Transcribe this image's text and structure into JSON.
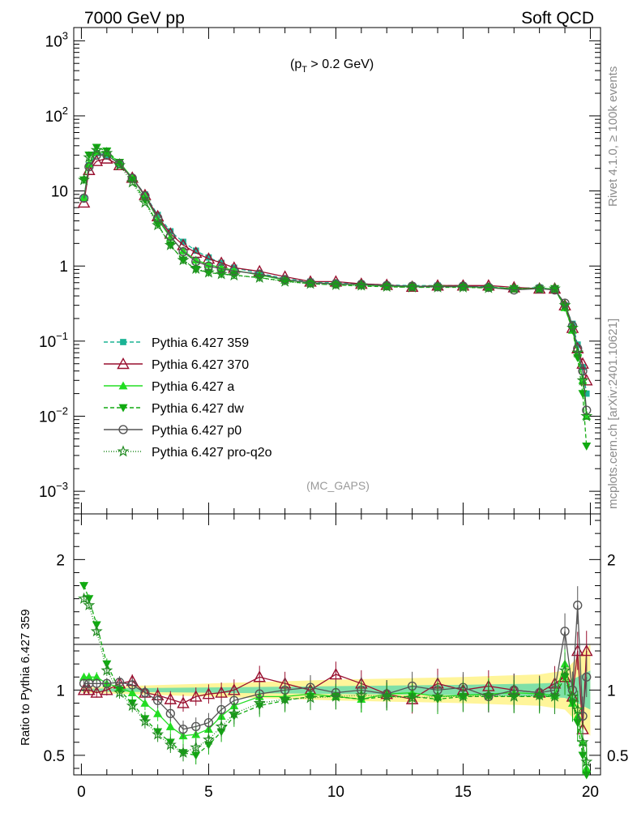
{
  "header": {
    "left": "7000 GeV pp",
    "right": "Soft QCD"
  },
  "side_text": {
    "top": "Rivet 4.1.0, ≥ 100k events",
    "bottom": "mcplots.cern.ch [arXiv:2401.10621]"
  },
  "chart_data": {
    "type": "line",
    "title": "7000 GeV pp Soft QCD",
    "main_panel": {
      "annotation_prefix": "(p",
      "annotation_sub": "T",
      "annotation_suffix": " > 0.2 GeV)",
      "analysis_tag": "(MC_GAPS)",
      "yscale": "log",
      "ylim": [
        0.0005,
        1500
      ],
      "y_ticks": [
        {
          "base": "10",
          "exp": "3",
          "value": 1000
        },
        {
          "base": "10",
          "exp": "2",
          "value": 100
        },
        {
          "base": "10",
          "exp": "",
          "value": 10
        },
        {
          "base": "1",
          "exp": "",
          "value": 1
        },
        {
          "base": "10",
          "exp": "−1",
          "value": 0.1
        },
        {
          "base": "10",
          "exp": "−2",
          "value": 0.01
        },
        {
          "base": "10",
          "exp": "−3",
          "value": 0.001
        }
      ]
    },
    "ratio_panel": {
      "ylabel": "Ratio to Pythia 6.427 359",
      "ylim": [
        0.35,
        2.35
      ],
      "y_ticks": [
        {
          "label": "0.5",
          "value": 0.5
        },
        {
          "label": "1",
          "value": 1
        },
        {
          "label": "2",
          "value": 2
        }
      ]
    },
    "xlim": [
      -0.3,
      20.4
    ],
    "x_ticks": [
      {
        "label": "0",
        "value": 0
      },
      {
        "label": "5",
        "value": 5
      },
      {
        "label": "10",
        "value": 10
      },
      {
        "label": "15",
        "value": 15
      },
      {
        "label": "20",
        "value": 20
      }
    ],
    "x": [
      0.1,
      0.3,
      0.6,
      1.0,
      1.5,
      2.0,
      2.5,
      3.0,
      3.5,
      4.0,
      4.5,
      5.0,
      5.5,
      6.0,
      7.0,
      8.0,
      9.0,
      10.0,
      11.0,
      12.0,
      13.0,
      14.0,
      15.0,
      16.0,
      17.0,
      18.0,
      18.6,
      19.0,
      19.3,
      19.5,
      19.7,
      19.85
    ],
    "series": [
      {
        "name": "Pythia 6.427 359",
        "color": "#1ab394",
        "dash": "5,3",
        "marker": "square",
        "values": [
          8.0,
          22,
          32,
          30,
          23,
          15,
          9.0,
          4.8,
          2.9,
          2.1,
          1.6,
          1.3,
          1.1,
          0.95,
          0.8,
          0.68,
          0.62,
          0.6,
          0.58,
          0.56,
          0.55,
          0.55,
          0.55,
          0.53,
          0.5,
          0.52,
          0.48,
          0.3,
          0.17,
          0.09,
          0.045,
          0.02
        ],
        "ratio": [
          1.05,
          1.05,
          1.03,
          1.02,
          1.01,
          1.0,
          1.0,
          1.0,
          1.0,
          1.0,
          1.0,
          1.0,
          1.0,
          1.0,
          1.0,
          1.0,
          1.0,
          1.0,
          1.0,
          1.0,
          1.0,
          1.0,
          1.0,
          1.0,
          1.0,
          1.0,
          1.0,
          1.0,
          1.0,
          1.0,
          1.0,
          1.0
        ]
      },
      {
        "name": "Pythia 6.427 370",
        "color": "#990f2f",
        "dash": "",
        "marker": "triangle-open",
        "values": [
          7.0,
          19,
          25,
          27,
          22,
          15,
          8.8,
          4.6,
          2.7,
          1.9,
          1.5,
          1.25,
          1.1,
          0.95,
          0.85,
          0.72,
          0.62,
          0.62,
          0.58,
          0.56,
          0.53,
          0.55,
          0.55,
          0.55,
          0.52,
          0.5,
          0.5,
          0.3,
          0.15,
          0.08,
          0.05,
          0.03
        ],
        "ratio": [
          1.0,
          1.0,
          0.98,
          1.0,
          1.05,
          1.07,
          0.98,
          0.96,
          0.93,
          0.9,
          0.95,
          0.97,
          0.98,
          1.0,
          1.1,
          1.05,
          1.0,
          1.12,
          1.05,
          0.97,
          0.93,
          1.05,
          1.0,
          1.03,
          1.0,
          0.98,
          1.05,
          1.1,
          0.95,
          1.3,
          0.7,
          1.3
        ]
      },
      {
        "name": "Pythia 6.427 a",
        "color": "#22dd22",
        "dash": "",
        "marker": "triangle",
        "values": [
          8.2,
          23,
          33,
          32,
          24,
          15,
          8.5,
          4.2,
          2.4,
          1.6,
          1.2,
          1.05,
          0.95,
          0.88,
          0.76,
          0.65,
          0.6,
          0.58,
          0.56,
          0.54,
          0.53,
          0.54,
          0.53,
          0.52,
          0.5,
          0.5,
          0.5,
          0.28,
          0.14,
          0.07,
          0.03,
          0.01
        ],
        "ratio": [
          1.1,
          1.1,
          1.1,
          1.05,
          1.02,
          0.98,
          0.9,
          0.82,
          0.72,
          0.65,
          0.66,
          0.7,
          0.8,
          0.88,
          0.95,
          0.95,
          0.97,
          0.95,
          0.93,
          0.97,
          0.98,
          0.95,
          0.96,
          0.97,
          0.98,
          0.97,
          0.96,
          1.2,
          0.9,
          0.8,
          0.6,
          0.4
        ]
      },
      {
        "name": "Pythia 6.427 dw",
        "color": "#11aa11",
        "dash": "5,3",
        "marker": "triangle-down",
        "values": [
          14,
          30,
          38,
          34,
          24,
          14,
          7.5,
          3.6,
          1.9,
          1.2,
          0.9,
          0.82,
          0.78,
          0.76,
          0.7,
          0.63,
          0.58,
          0.56,
          0.54,
          0.53,
          0.52,
          0.52,
          0.52,
          0.51,
          0.5,
          0.5,
          0.5,
          0.28,
          0.14,
          0.06,
          0.02,
          0.004
        ],
        "ratio": [
          1.8,
          1.7,
          1.5,
          1.2,
          1.0,
          0.9,
          0.78,
          0.68,
          0.6,
          0.52,
          0.5,
          0.58,
          0.68,
          0.8,
          0.88,
          0.92,
          0.95,
          0.95,
          0.93,
          0.95,
          0.95,
          0.93,
          0.95,
          0.95,
          0.95,
          0.95,
          0.95,
          1.1,
          0.9,
          0.75,
          0.5,
          0.3
        ]
      },
      {
        "name": "Pythia 6.427 p0",
        "color": "#555555",
        "dash": "",
        "marker": "circle-open",
        "values": [
          8.0,
          21,
          30,
          30,
          23,
          14.8,
          8.6,
          4.4,
          2.5,
          1.55,
          1.15,
          1.0,
          0.92,
          0.86,
          0.78,
          0.66,
          0.6,
          0.58,
          0.57,
          0.55,
          0.54,
          0.53,
          0.54,
          0.52,
          0.48,
          0.5,
          0.48,
          0.32,
          0.16,
          0.08,
          0.04,
          0.012
        ],
        "ratio": [
          1.05,
          1.05,
          1.05,
          1.05,
          1.06,
          1.04,
          0.98,
          0.92,
          0.82,
          0.7,
          0.72,
          0.75,
          0.85,
          0.92,
          0.97,
          1.0,
          1.02,
          0.98,
          1.0,
          0.97,
          1.03,
          1.0,
          1.02,
          0.95,
          1.0,
          0.98,
          1.0,
          1.45,
          1.0,
          1.65,
          0.8,
          1.1
        ]
      },
      {
        "name": "Pythia 6.427 pro-q2o",
        "color": "#228b22",
        "dash": "1,2",
        "marker": "star",
        "values": [
          14,
          28,
          35,
          32,
          22,
          13,
          7.0,
          3.5,
          1.9,
          1.2,
          0.92,
          0.82,
          0.78,
          0.75,
          0.7,
          0.62,
          0.58,
          0.56,
          0.55,
          0.53,
          0.52,
          0.52,
          0.52,
          0.51,
          0.5,
          0.5,
          0.5,
          0.3,
          0.15,
          0.07,
          0.03,
          0.01
        ],
        "ratio": [
          1.7,
          1.65,
          1.45,
          1.15,
          0.98,
          0.88,
          0.76,
          0.66,
          0.58,
          0.52,
          0.56,
          0.62,
          0.72,
          0.82,
          0.9,
          0.93,
          0.94,
          0.95,
          0.96,
          0.95,
          0.94,
          0.95,
          0.95,
          0.96,
          0.95,
          0.96,
          0.95,
          1.15,
          0.95,
          0.85,
          0.6,
          0.45
        ]
      }
    ],
    "uncertainty_band": {
      "color_inner": "#7fe0a8",
      "color_outer": "#fff59a",
      "x": [
        0,
        5,
        10,
        15,
        18,
        19,
        19.5,
        20
      ],
      "inner_halfwidth": [
        0.01,
        0.02,
        0.03,
        0.04,
        0.05,
        0.06,
        0.1,
        0.15
      ],
      "outer_halfwidth": [
        0.02,
        0.05,
        0.08,
        0.1,
        0.12,
        0.15,
        0.25,
        0.35
      ]
    }
  }
}
